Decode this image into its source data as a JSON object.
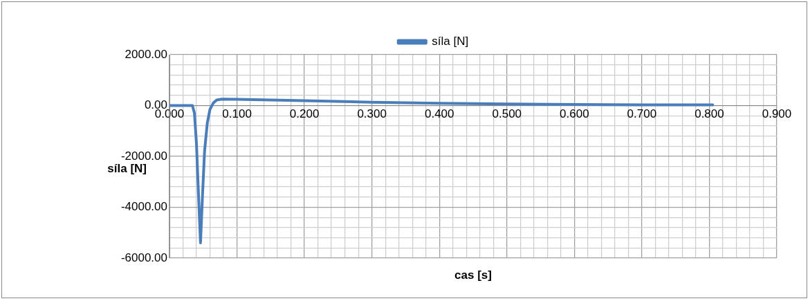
{
  "chart_data": {
    "type": "line",
    "xlabel": "cas [s]",
    "ylabel": "síla [N]",
    "legend": "top",
    "grid": true,
    "marker": "none",
    "line_style": "solid",
    "xlim": [
      0,
      0.9
    ],
    "ylim": [
      -6000,
      2000
    ],
    "xticks": [
      {
        "value": 0,
        "label": "0.000"
      },
      {
        "value": 0.02,
        "label": null
      },
      {
        "value": 0.04,
        "label": null
      },
      {
        "value": 0.06,
        "label": null
      },
      {
        "value": 0.08,
        "label": null
      },
      {
        "value": 0.1,
        "label": "0.100"
      },
      {
        "value": 0.12,
        "label": null
      },
      {
        "value": 0.14,
        "label": null
      },
      {
        "value": 0.16,
        "label": null
      },
      {
        "value": 0.18,
        "label": null
      },
      {
        "value": 0.2,
        "label": "0.200"
      },
      {
        "value": 0.22,
        "label": null
      },
      {
        "value": 0.24,
        "label": null
      },
      {
        "value": 0.26,
        "label": null
      },
      {
        "value": 0.28,
        "label": null
      },
      {
        "value": 0.3,
        "label": "0.300"
      },
      {
        "value": 0.32,
        "label": null
      },
      {
        "value": 0.34,
        "label": null
      },
      {
        "value": 0.36,
        "label": null
      },
      {
        "value": 0.38,
        "label": null
      },
      {
        "value": 0.4,
        "label": "0.400"
      },
      {
        "value": 0.42,
        "label": null
      },
      {
        "value": 0.44,
        "label": null
      },
      {
        "value": 0.46,
        "label": null
      },
      {
        "value": 0.48,
        "label": null
      },
      {
        "value": 0.5,
        "label": "0.500"
      },
      {
        "value": 0.52,
        "label": null
      },
      {
        "value": 0.54,
        "label": null
      },
      {
        "value": 0.56,
        "label": null
      },
      {
        "value": 0.58,
        "label": null
      },
      {
        "value": 0.6,
        "label": "0.600"
      },
      {
        "value": 0.62,
        "label": null
      },
      {
        "value": 0.64,
        "label": null
      },
      {
        "value": 0.66,
        "label": null
      },
      {
        "value": 0.68,
        "label": null
      },
      {
        "value": 0.7,
        "label": "0.700"
      },
      {
        "value": 0.72,
        "label": null
      },
      {
        "value": 0.74,
        "label": null
      },
      {
        "value": 0.76,
        "label": null
      },
      {
        "value": 0.78,
        "label": null
      },
      {
        "value": 0.8,
        "label": "0.800"
      },
      {
        "value": 0.82,
        "label": null
      },
      {
        "value": 0.84,
        "label": null
      },
      {
        "value": 0.86,
        "label": null
      },
      {
        "value": 0.88,
        "label": null
      },
      {
        "value": 0.9,
        "label": "0.900"
      }
    ],
    "yticks": [
      {
        "value": -6000,
        "label": "-6000.00"
      },
      {
        "value": -5600,
        "label": null
      },
      {
        "value": -5200,
        "label": null
      },
      {
        "value": -4800,
        "label": null
      },
      {
        "value": -4400,
        "label": null
      },
      {
        "value": -4000,
        "label": "-4000.00"
      },
      {
        "value": -3600,
        "label": null
      },
      {
        "value": -3200,
        "label": null
      },
      {
        "value": -2800,
        "label": null
      },
      {
        "value": -2400,
        "label": null
      },
      {
        "value": -2000,
        "label": "-2000.00"
      },
      {
        "value": -1600,
        "label": null
      },
      {
        "value": -1200,
        "label": null
      },
      {
        "value": -800,
        "label": null
      },
      {
        "value": -400,
        "label": null
      },
      {
        "value": 0,
        "label": "0.00"
      },
      {
        "value": 400,
        "label": null
      },
      {
        "value": 800,
        "label": null
      },
      {
        "value": 1200,
        "label": null
      },
      {
        "value": 1600,
        "label": null
      },
      {
        "value": 2000,
        "label": "2000.00"
      }
    ],
    "series": [
      {
        "name": "síla [N]",
        "color": "#4a7ebb",
        "x": [
          0,
          0.034,
          0.037,
          0.04,
          0.043,
          0.046,
          0.049,
          0.052,
          0.056,
          0.06,
          0.065,
          0.07,
          0.078,
          0.1,
          0.2,
          0.3,
          0.4,
          0.5,
          0.6,
          0.7,
          0.805
        ],
        "values": [
          0,
          0,
          -300,
          -1500,
          -3500,
          -5400,
          -3500,
          -1800,
          -700,
          -150,
          100,
          220,
          250,
          245,
          190,
          130,
          90,
          60,
          40,
          30,
          25
        ]
      }
    ]
  }
}
